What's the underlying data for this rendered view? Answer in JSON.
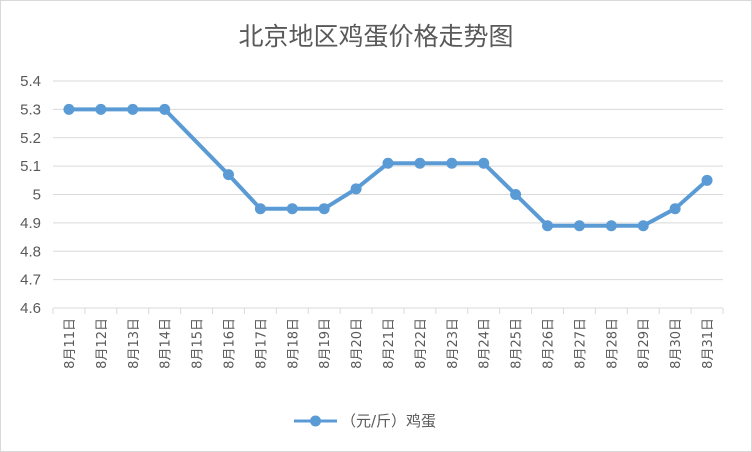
{
  "chart_data": {
    "type": "line",
    "title": "北京地区鸡蛋价格走势图",
    "xlabel": "",
    "ylabel": "",
    "ylim": [
      4.6,
      5.4
    ],
    "yticks": [
      "4.6",
      "4.7",
      "4.8",
      "4.9",
      "5",
      "5.1",
      "5.2",
      "5.3",
      "5.4"
    ],
    "grid": true,
    "legend_position": "bottom",
    "categories": [
      "8月11日",
      "8月12日",
      "8月13日",
      "8月14日",
      "8月15日",
      "8月16日",
      "8月17日",
      "8月18日",
      "8月19日",
      "8月20日",
      "8月21日",
      "8月22日",
      "8月23日",
      "8月24日",
      "8月25日",
      "8月26日",
      "8月27日",
      "8月28日",
      "8月29日",
      "8月30日",
      "8月31日"
    ],
    "series": [
      {
        "name": "（元/斤）鸡蛋",
        "color": "#5B9BD5",
        "values": [
          5.3,
          5.3,
          5.3,
          5.3,
          null,
          5.07,
          4.95,
          4.95,
          4.95,
          5.02,
          5.11,
          5.11,
          5.11,
          5.11,
          5.0,
          4.89,
          4.89,
          4.89,
          4.89,
          4.95,
          5.05
        ]
      }
    ]
  }
}
